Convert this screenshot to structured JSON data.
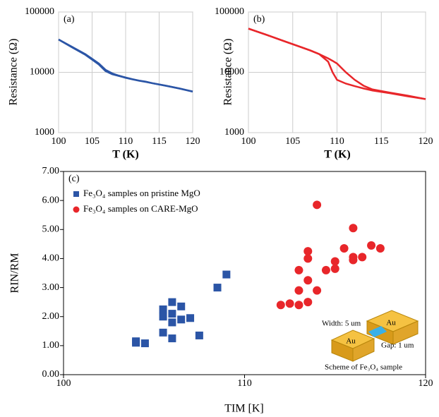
{
  "chart_data": [
    {
      "type": "line",
      "label": "(a)",
      "y_label": "Resistance (Ω)",
      "x_label": "T (K)",
      "log_y": true,
      "grid": true,
      "xlim": [
        100,
        120
      ],
      "xticks": [
        100,
        105,
        110,
        115,
        120
      ],
      "ylim": [
        1000,
        100000
      ],
      "yticks": [
        1000,
        10000,
        100000
      ],
      "x": [
        100,
        102,
        104,
        106,
        107,
        108,
        109,
        109.5,
        110,
        111,
        112,
        113,
        114,
        116,
        118,
        120
      ],
      "series": [
        {
          "color": "#2b55a6",
          "values": [
            35000,
            26500,
            20000,
            14000,
            11000,
            9600,
            8800,
            8500,
            8200,
            7700,
            7300,
            7000,
            6600,
            6000,
            5400,
            4800
          ]
        },
        {
          "color": "#2b55a6",
          "values": [
            35000,
            26000,
            19500,
            13500,
            10500,
            9300,
            8700,
            8400,
            8100,
            7650,
            7250,
            6950,
            6600,
            6000,
            5400,
            4800
          ]
        }
      ]
    },
    {
      "type": "line",
      "label": "(b)",
      "y_label": "Resistance (Ω)",
      "x_label": "T (K)",
      "log_y": true,
      "grid": true,
      "xlim": [
        100,
        120
      ],
      "xticks": [
        100,
        105,
        110,
        115,
        120
      ],
      "ylim": [
        1000,
        100000
      ],
      "yticks": [
        1000,
        10000,
        100000
      ],
      "x": [
        100,
        102,
        104,
        106,
        107,
        108,
        109,
        109.5,
        110,
        111,
        112,
        113,
        114,
        116,
        118,
        120
      ],
      "series": [
        {
          "color": "#e8262a",
          "values": [
            53000,
            42000,
            33000,
            26000,
            23000,
            20000,
            15000,
            10000,
            7500,
            6500,
            5900,
            5400,
            5000,
            4500,
            4000,
            3600
          ]
        },
        {
          "color": "#e8262a",
          "values": [
            53000,
            42000,
            33000,
            26000,
            23000,
            20000,
            17000,
            15500,
            14000,
            10000,
            7500,
            6000,
            5200,
            4600,
            4100,
            3600
          ]
        }
      ]
    },
    {
      "type": "scatter",
      "label": "(c)",
      "y_label": "RIN/RM",
      "x_label": "TIM [K]",
      "log_y": false,
      "grid": false,
      "legend": "upper left",
      "xlim": [
        100,
        120
      ],
      "xticks": [
        100,
        110,
        120
      ],
      "ylim": [
        0,
        7
      ],
      "yticks": [
        {
          "value": 0,
          "label": "0.00"
        },
        {
          "value": 1,
          "label": "1.00"
        },
        {
          "value": 2,
          "label": "2.00"
        },
        {
          "value": 3,
          "label": "3.00"
        },
        {
          "value": 4,
          "label": "4.00"
        },
        {
          "value": 5,
          "label": "5.00"
        },
        {
          "value": 6,
          "label": "6.00"
        },
        {
          "value": 7,
          "label": "7.00"
        }
      ],
      "series": [
        {
          "name": "Fe₃O₄ samples on pristine MgO",
          "color": "#2b55a6",
          "marker": "square",
          "x": [
            104,
            104,
            104.5,
            105.5,
            105.5,
            105.5,
            106,
            106,
            106,
            106,
            106.5,
            106.5,
            107,
            107.5,
            108.5,
            109
          ],
          "values": [
            1.1,
            1.15,
            1.08,
            1.45,
            2.0,
            2.25,
            1.25,
            1.8,
            2.1,
            2.5,
            1.9,
            2.35,
            1.95,
            1.35,
            3.0,
            3.45
          ]
        },
        {
          "name": "Fe₃O₄ samples on CARE-MgO",
          "color": "#e8262a",
          "marker": "circle",
          "x": [
            112,
            112.5,
            113,
            113,
            113,
            113.5,
            113.5,
            113.5,
            113.5,
            114,
            114,
            114.5,
            115,
            115,
            115.5,
            116,
            116,
            116,
            116.5,
            117,
            117.5
          ],
          "values": [
            2.4,
            2.45,
            2.4,
            2.9,
            3.6,
            2.5,
            3.25,
            4.0,
            4.25,
            2.9,
            5.85,
            3.6,
            3.65,
            3.9,
            4.35,
            3.95,
            4.05,
            5.05,
            4.05,
            4.45,
            4.35
          ]
        }
      ],
      "annotations": [
        "Width: 5 um",
        "Gap: 1 um",
        "Scheme of Fe₃O₄ sample",
        "Au",
        "Au"
      ]
    }
  ]
}
